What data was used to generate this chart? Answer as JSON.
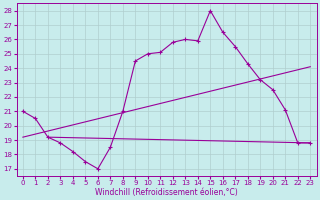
{
  "xlabel": "Windchill (Refroidissement éolien,°C)",
  "bg_color": "#c8ecec",
  "line_color": "#990099",
  "grid_color": "#b0cece",
  "xlim_min": -0.5,
  "xlim_max": 23.5,
  "ylim_min": 16.5,
  "ylim_max": 28.5,
  "xticks": [
    0,
    1,
    2,
    3,
    4,
    5,
    6,
    7,
    8,
    9,
    10,
    11,
    12,
    13,
    14,
    15,
    16,
    17,
    18,
    19,
    20,
    21,
    22,
    23
  ],
  "yticks": [
    17,
    18,
    19,
    20,
    21,
    22,
    23,
    24,
    25,
    26,
    27,
    28
  ],
  "line1_x": [
    0,
    1,
    2,
    3,
    4,
    5,
    6,
    7,
    8,
    9,
    10,
    11,
    12,
    13,
    14,
    15,
    16,
    17,
    18,
    19,
    20,
    21,
    22,
    23
  ],
  "line1_y": [
    21.0,
    20.5,
    19.2,
    18.8,
    18.2,
    17.5,
    17.0,
    18.5,
    21.0,
    24.5,
    25.0,
    25.1,
    25.8,
    26.0,
    25.9,
    28.0,
    26.5,
    25.5,
    24.3,
    23.2,
    22.5,
    21.1,
    18.8,
    18.8
  ],
  "line2_x": [
    2,
    23
  ],
  "line2_y": [
    19.2,
    18.8
  ],
  "line3_x": [
    0,
    23
  ],
  "line3_y": [
    19.2,
    24.1
  ],
  "xlabel_fontsize": 5.5,
  "tick_labelsize": 5
}
